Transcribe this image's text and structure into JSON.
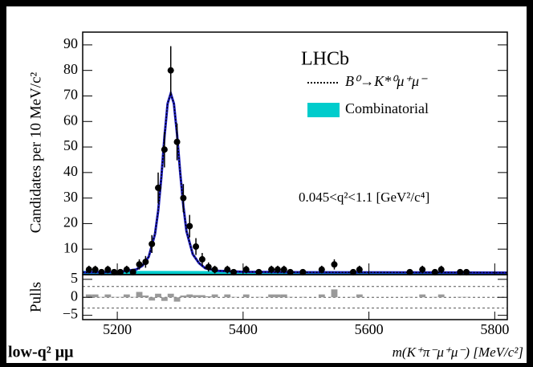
{
  "chart_data": [
    {
      "type": "scatter",
      "ylabel": "Candidates per 10 MeV/c²",
      "experiment": "LHCb",
      "annotation": "0.045<q²<1.1 [GeV²/c⁴]",
      "corner_label": "low-q² μμ",
      "x": [
        5155,
        5165,
        5175,
        5185,
        5195,
        5205,
        5215,
        5225,
        5235,
        5245,
        5255,
        5265,
        5275,
        5285,
        5295,
        5305,
        5315,
        5325,
        5335,
        5345,
        5355,
        5375,
        5385,
        5405,
        5425,
        5445,
        5455,
        5465,
        5475,
        5495,
        5525,
        5545,
        5575,
        5585,
        5665,
        5685,
        5705,
        5715,
        5745,
        5755
      ],
      "values": [
        2,
        2,
        1,
        2,
        1,
        1,
        2,
        1,
        4,
        5,
        12,
        34,
        49,
        80,
        52,
        30,
        19,
        11,
        6,
        3,
        2,
        2,
        1,
        2,
        1,
        2,
        2,
        2,
        1,
        1,
        2,
        4,
        1,
        2,
        1,
        2,
        1,
        2,
        1,
        1
      ],
      "errors": [
        1.5,
        1.5,
        1,
        1.5,
        1,
        1,
        1.5,
        1,
        2,
        2.3,
        3.5,
        6,
        7,
        9.5,
        7.2,
        5.5,
        4.4,
        3.3,
        2.5,
        1.8,
        1.5,
        1.5,
        1,
        1.5,
        1,
        1.5,
        1.5,
        1.5,
        1,
        1,
        1.5,
        2,
        1,
        1.5,
        1,
        1.5,
        1,
        1.5,
        1,
        1
      ],
      "color": "#000000",
      "series": [
        {
          "name": "B⁰→K*⁰μ⁺μ⁻",
          "color": "#1c1cc0",
          "x": [
            5145,
            5200,
            5230,
            5240,
            5250,
            5260,
            5265,
            5270,
            5275,
            5280,
            5285,
            5290,
            5295,
            5300,
            5305,
            5310,
            5320,
            5330,
            5340,
            5360,
            5400,
            5500,
            5820
          ],
          "values": [
            0.9,
            1.0,
            2,
            3.5,
            7,
            16,
            25,
            38,
            54,
            67,
            71,
            67,
            55,
            40,
            27,
            17,
            8,
            4.5,
            2.5,
            1.5,
            1.1,
            0.9,
            0.8
          ]
        },
        {
          "name": "Combinatorial",
          "color": "#00cccc",
          "x": [
            5145,
            5820
          ],
          "values": [
            1.5,
            1.2
          ]
        }
      ],
      "xlim": [
        5145,
        5820
      ],
      "ylim": [
        0,
        95
      ],
      "yticks": [
        10,
        20,
        30,
        40,
        50,
        60,
        70,
        80,
        90
      ]
    },
    {
      "type": "bar",
      "ylabel": "Pulls",
      "xlabel": "m(K⁺π⁻μ⁺μ⁻) [MeV/c²]",
      "x": [
        5155,
        5165,
        5175,
        5185,
        5195,
        5205,
        5215,
        5225,
        5235,
        5245,
        5255,
        5265,
        5275,
        5285,
        5295,
        5305,
        5315,
        5325,
        5335,
        5345,
        5355,
        5375,
        5385,
        5405,
        5425,
        5445,
        5455,
        5465,
        5475,
        5495,
        5525,
        5545,
        5575,
        5585,
        5665,
        5685,
        5705,
        5715,
        5745,
        5755
      ],
      "values": [
        0.8,
        0.8,
        0.1,
        0.8,
        0.1,
        0.1,
        0.8,
        0.1,
        1.5,
        0.5,
        -0.9,
        1.0,
        -1.0,
        1.0,
        -1.2,
        0.5,
        0.8,
        0.6,
        0.6,
        0.3,
        0.8,
        0.8,
        0.1,
        0.8,
        0.1,
        0.8,
        0.8,
        0.8,
        0.1,
        0.1,
        0.8,
        2.2,
        0.1,
        0.8,
        0.1,
        0.8,
        0.1,
        0.8,
        0.1,
        0.1
      ],
      "bin_width": 10,
      "color": "#999999",
      "reference_lines": [
        -3,
        0,
        3
      ],
      "xlim": [
        5145,
        5820
      ],
      "ylim": [
        -6.2,
        6.3
      ],
      "xticks": [
        5200,
        5400,
        5600,
        5800
      ],
      "yticks": [
        {
          "value": -5,
          "label": "−5"
        },
        0,
        5
      ]
    }
  ]
}
